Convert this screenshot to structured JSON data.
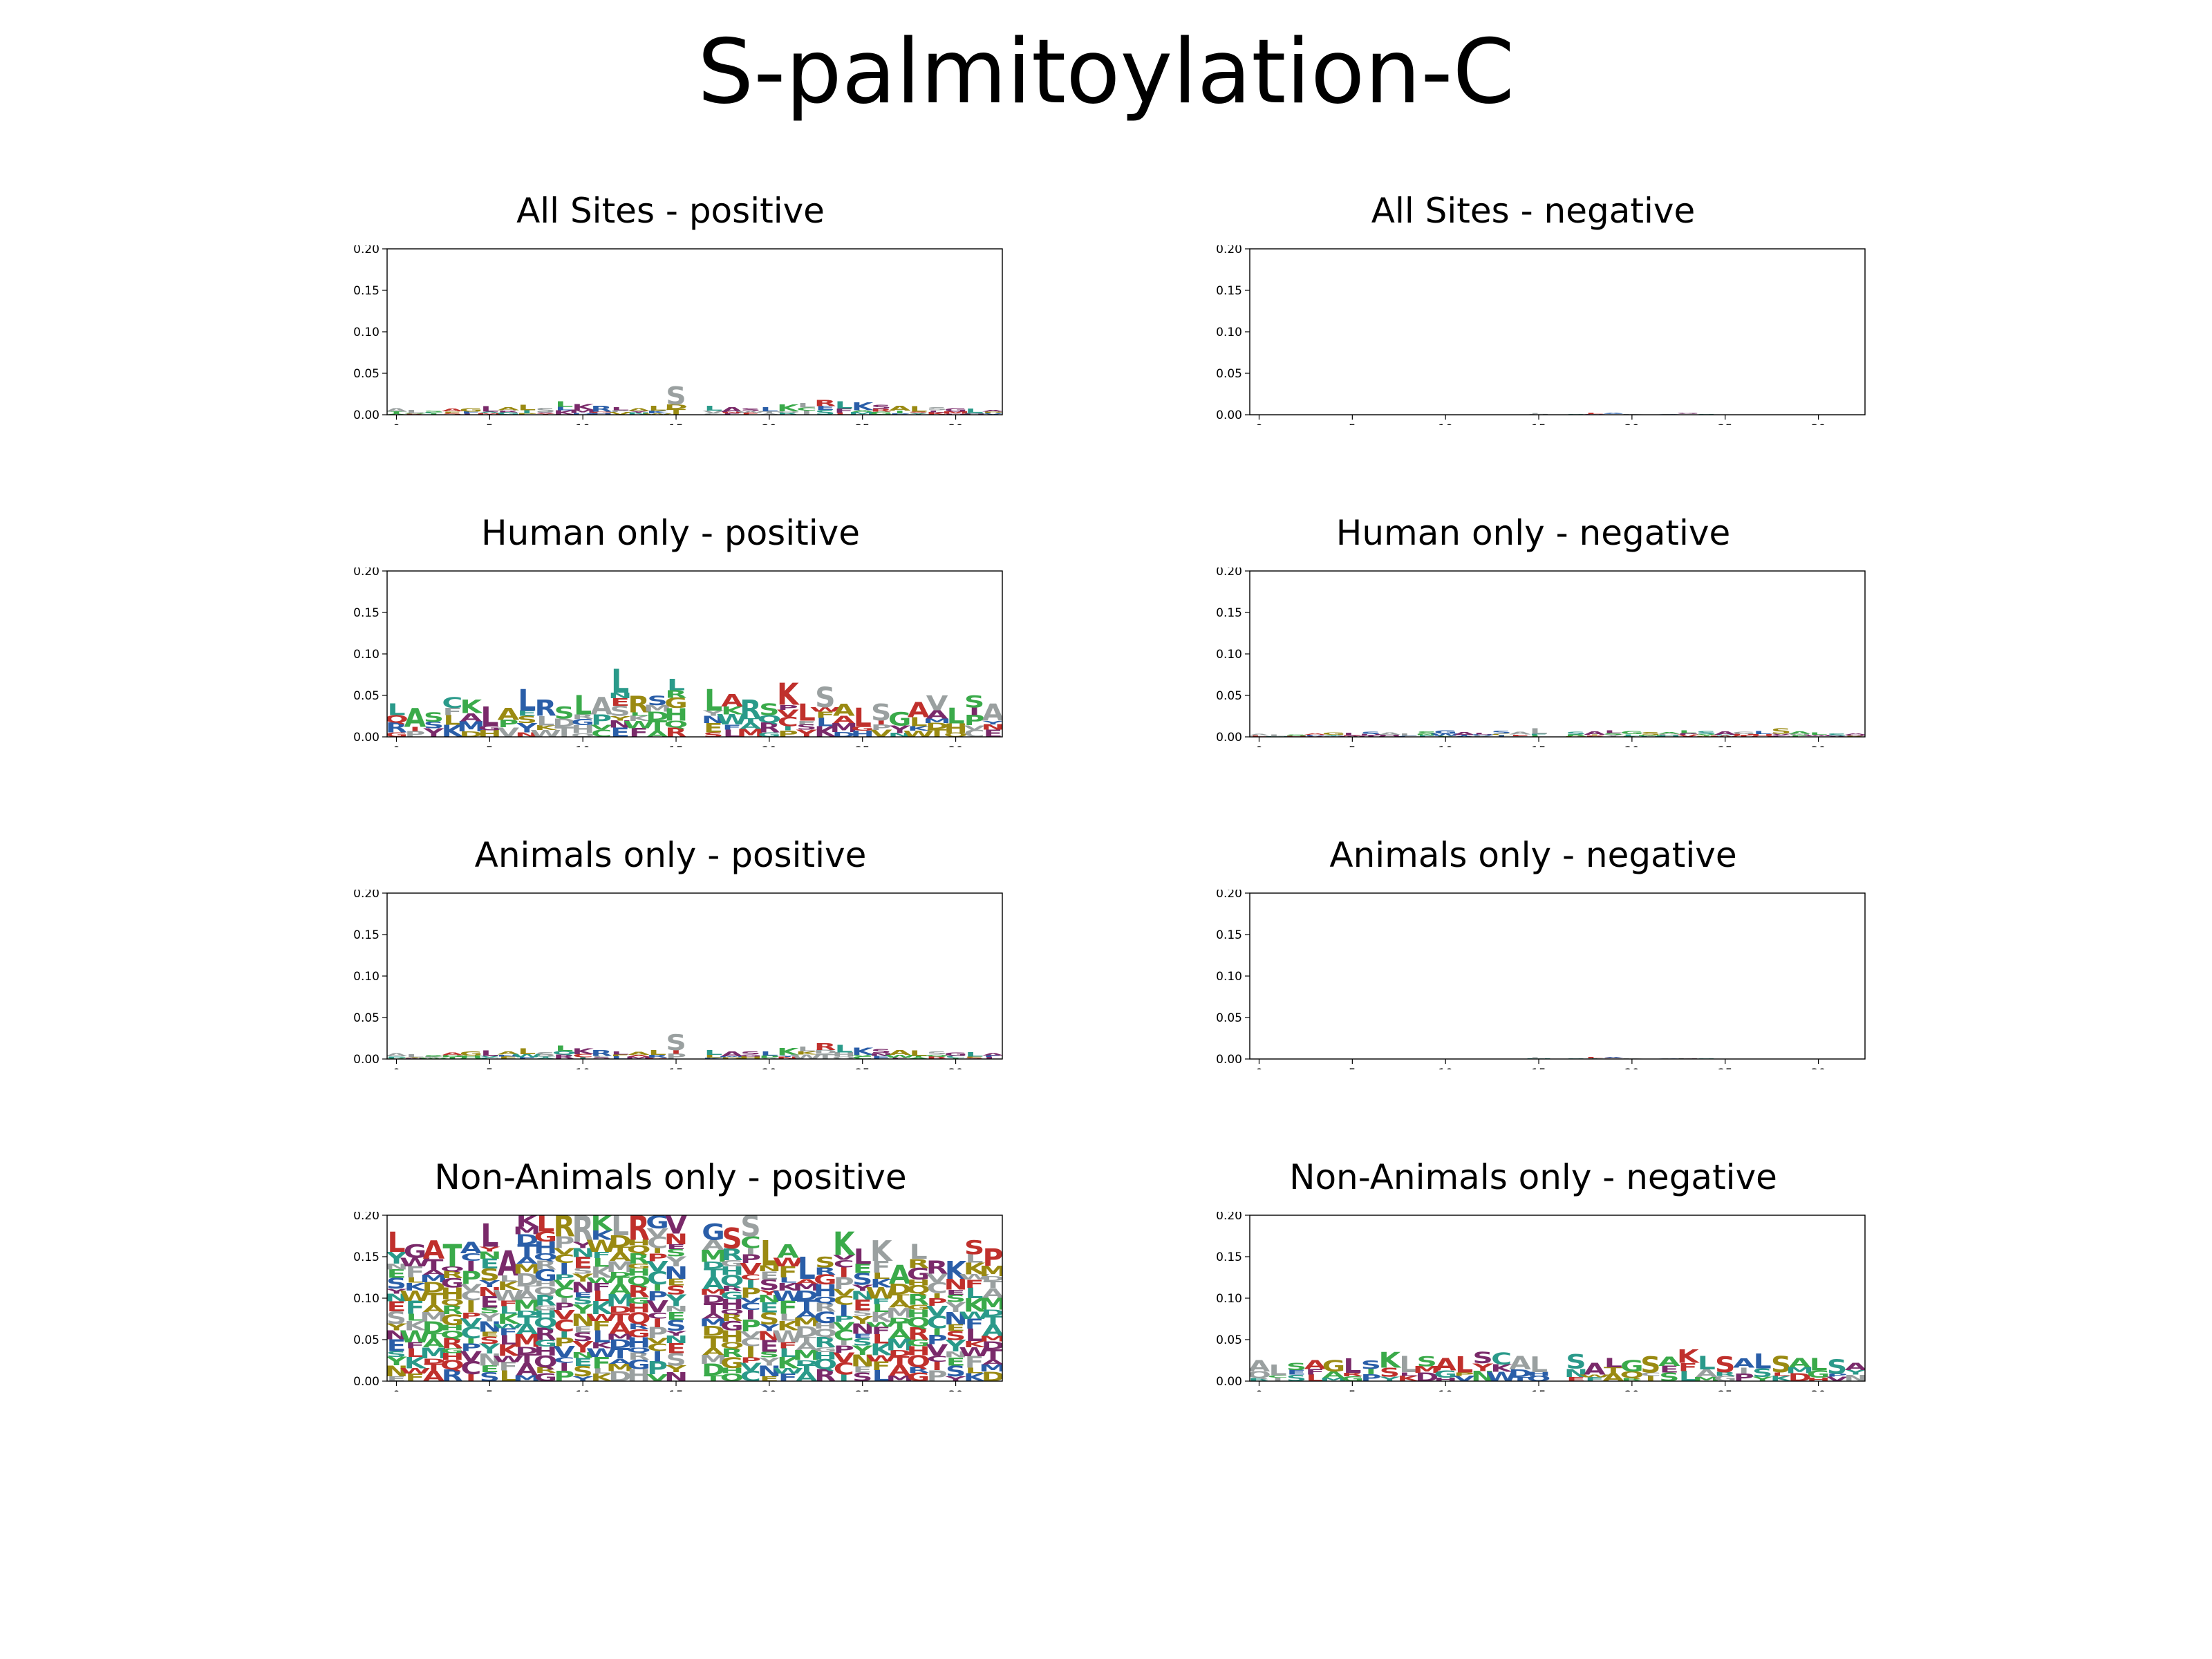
{
  "suptitle": "S-palmitoylation-C",
  "colors": {
    "blue": "#2a5ea8",
    "red": "#c0302c",
    "green": "#3aaa4a",
    "olive": "#9a8a12",
    "purple": "#7a2a6a",
    "teal": "#2a9a8a",
    "gray": "#9aa0a0"
  },
  "chart_data": [
    {
      "type": "bar",
      "panel": "All Sites - positive",
      "title": "All Sites - positive",
      "ylim": [
        0,
        0.2
      ],
      "yticks": [
        "0.00",
        "0.05",
        "0.10",
        "0.15",
        "0.20"
      ],
      "xticks": [
        "0",
        "5",
        "10",
        "15",
        "20",
        "25",
        "30"
      ],
      "positions": [
        0,
        1,
        2,
        3,
        4,
        5,
        6,
        7,
        8,
        9,
        10,
        11,
        12,
        13,
        14,
        15,
        16,
        17,
        18,
        19,
        20,
        21,
        22,
        23,
        24,
        25,
        26,
        27,
        28,
        29,
        30,
        31,
        32
      ],
      "values": [
        0.008,
        0.006,
        0.005,
        0.007,
        0.008,
        0.01,
        0.009,
        0.012,
        0.008,
        0.016,
        0.013,
        0.011,
        0.009,
        0.008,
        0.011,
        0.034,
        0,
        0.011,
        0.009,
        0.008,
        0.009,
        0.012,
        0.014,
        0.018,
        0.016,
        0.015,
        0.012,
        0.011,
        0.01,
        0.009,
        0.008,
        0.007,
        0.006
      ],
      "top_letters": [
        "A",
        "L",
        "S",
        "A",
        "G",
        "L",
        "A",
        "L",
        "S",
        "L",
        "K",
        "R",
        "L",
        "A",
        "L",
        "S",
        "",
        "L",
        "A",
        "S",
        "L",
        "K",
        "L",
        "R",
        "L",
        "K",
        "S",
        "A",
        "L",
        "S",
        "G",
        "L",
        "A"
      ],
      "grid": false
    },
    {
      "type": "bar",
      "panel": "All Sites - negative",
      "title": "All Sites - negative",
      "ylim": [
        0,
        0.2
      ],
      "yticks": [
        "0.00",
        "0.05",
        "0.10",
        "0.15",
        "0.20"
      ],
      "xticks": [
        "0",
        "5",
        "10",
        "15",
        "20",
        "25",
        "30"
      ],
      "positions": [
        0,
        1,
        2,
        3,
        4,
        5,
        6,
        7,
        8,
        9,
        10,
        11,
        12,
        13,
        14,
        15,
        16,
        17,
        18,
        19,
        20,
        21,
        22,
        23,
        24,
        25,
        26,
        27,
        28,
        29,
        30,
        31,
        32
      ],
      "values": [
        0,
        0,
        0,
        0,
        0,
        0,
        0,
        0,
        0,
        0,
        0,
        0,
        0,
        0,
        0,
        0.002,
        0,
        0.001,
        0.002,
        0.002,
        0.001,
        0,
        0.001,
        0.002,
        0.001,
        0,
        0,
        0,
        0,
        0,
        0,
        0,
        0
      ],
      "top_letters": [
        "",
        "",
        "",
        "",
        "",
        "",
        "",
        "",
        "",
        "",
        "",
        "",
        "",
        "",
        "",
        "L",
        "",
        "S",
        "L",
        "A",
        "K",
        "",
        "L",
        "G",
        "S",
        "",
        "",
        "",
        "",
        "",
        "",
        "",
        ""
      ],
      "grid": false
    },
    {
      "type": "bar",
      "panel": "Human only - positive",
      "title": "Human only - positive",
      "ylim": [
        0,
        0.2
      ],
      "yticks": [
        "0.00",
        "0.05",
        "0.10",
        "0.15",
        "0.20"
      ],
      "xticks": [
        "0",
        "5",
        "10",
        "15",
        "20",
        "25",
        "30"
      ],
      "positions": [
        0,
        1,
        2,
        3,
        4,
        5,
        6,
        7,
        8,
        9,
        10,
        11,
        12,
        13,
        14,
        15,
        16,
        17,
        18,
        19,
        20,
        21,
        22,
        23,
        24,
        25,
        26,
        27,
        28,
        29,
        30,
        31,
        32
      ],
      "values": [
        0.04,
        0.035,
        0.03,
        0.048,
        0.045,
        0.037,
        0.035,
        0.058,
        0.045,
        0.037,
        0.05,
        0.048,
        0.082,
        0.05,
        0.05,
        0.07,
        0,
        0.058,
        0.052,
        0.045,
        0.04,
        0.065,
        0.04,
        0.06,
        0.04,
        0.035,
        0.04,
        0.03,
        0.042,
        0.05,
        0.035,
        0.05,
        0.04
      ],
      "top_letters": [
        "L",
        "A",
        "S",
        "C",
        "K",
        "L",
        "A",
        "L",
        "R",
        "S",
        "L",
        "A",
        "L",
        "R",
        "S",
        "L",
        "",
        "L",
        "A",
        "R",
        "S",
        "K",
        "L",
        "S",
        "A",
        "L",
        "S",
        "G",
        "A",
        "V",
        "L",
        "S",
        "A"
      ],
      "grid": false
    },
    {
      "type": "bar",
      "panel": "Human only - negative",
      "title": "Human only - negative",
      "ylim": [
        0,
        0.2
      ],
      "yticks": [
        "0.00",
        "0.05",
        "0.10",
        "0.15",
        "0.20"
      ],
      "xticks": [
        "0",
        "5",
        "10",
        "15",
        "20",
        "25",
        "30"
      ],
      "positions": [
        0,
        1,
        2,
        3,
        4,
        5,
        6,
        7,
        8,
        9,
        10,
        11,
        12,
        13,
        14,
        15,
        16,
        17,
        18,
        19,
        20,
        21,
        22,
        23,
        24,
        25,
        26,
        27,
        28,
        29,
        30,
        31,
        32
      ],
      "values": [
        0.004,
        0.003,
        0.003,
        0.004,
        0.005,
        0.005,
        0.006,
        0.005,
        0.004,
        0.006,
        0.008,
        0.006,
        0.005,
        0.007,
        0.006,
        0.01,
        0,
        0.006,
        0.007,
        0.008,
        0.007,
        0.006,
        0.006,
        0.008,
        0.007,
        0.007,
        0.006,
        0.007,
        0.01,
        0.006,
        0.005,
        0.004,
        0.004
      ],
      "top_letters": [
        "A",
        "L",
        "S",
        "A",
        "G",
        "L",
        "S",
        "A",
        "L",
        "S",
        "G",
        "A",
        "L",
        "S",
        "A",
        "L",
        "",
        "S",
        "A",
        "L",
        "G",
        "S",
        "A",
        "L",
        "S",
        "A",
        "G",
        "L",
        "S",
        "A",
        "L",
        "S",
        "A"
      ],
      "grid": false
    },
    {
      "type": "bar",
      "panel": "Animals only - positive",
      "title": "Animals only - positive",
      "ylim": [
        0,
        0.2
      ],
      "yticks": [
        "0.00",
        "0.05",
        "0.10",
        "0.15",
        "0.20"
      ],
      "xticks": [
        "0",
        "5",
        "10",
        "15",
        "20",
        "25",
        "30"
      ],
      "positions": [
        0,
        1,
        2,
        3,
        4,
        5,
        6,
        7,
        8,
        9,
        10,
        11,
        12,
        13,
        14,
        15,
        16,
        17,
        18,
        19,
        20,
        21,
        22,
        23,
        24,
        25,
        26,
        27,
        28,
        29,
        30,
        31,
        32
      ],
      "values": [
        0.007,
        0.006,
        0.005,
        0.008,
        0.009,
        0.01,
        0.009,
        0.013,
        0.008,
        0.016,
        0.013,
        0.011,
        0.009,
        0.009,
        0.011,
        0.03,
        0,
        0.011,
        0.009,
        0.009,
        0.009,
        0.013,
        0.015,
        0.019,
        0.017,
        0.014,
        0.012,
        0.011,
        0.01,
        0.009,
        0.008,
        0.008,
        0.007
      ],
      "top_letters": [
        "A",
        "L",
        "S",
        "A",
        "G",
        "L",
        "A",
        "L",
        "S",
        "L",
        "K",
        "R",
        "L",
        "A",
        "L",
        "S",
        "",
        "L",
        "A",
        "S",
        "L",
        "K",
        "L",
        "R",
        "L",
        "K",
        "S",
        "A",
        "L",
        "S",
        "G",
        "L",
        "A"
      ],
      "grid": false
    },
    {
      "type": "bar",
      "panel": "Animals only - negative",
      "title": "Animals only - negative",
      "ylim": [
        0,
        0.2
      ],
      "yticks": [
        "0.00",
        "0.05",
        "0.10",
        "0.15",
        "0.20"
      ],
      "xticks": [
        "0",
        "5",
        "10",
        "15",
        "20",
        "25",
        "30"
      ],
      "positions": [
        0,
        1,
        2,
        3,
        4,
        5,
        6,
        7,
        8,
        9,
        10,
        11,
        12,
        13,
        14,
        15,
        16,
        17,
        18,
        19,
        20,
        21,
        22,
        23,
        24,
        25,
        26,
        27,
        28,
        29,
        30,
        31,
        32
      ],
      "values": [
        0,
        0,
        0,
        0,
        0,
        0,
        0,
        0,
        0,
        0,
        0,
        0,
        0,
        0,
        0,
        0.002,
        0,
        0.001,
        0.002,
        0.002,
        0.001,
        0,
        0.001,
        0.001,
        0.001,
        0,
        0,
        0,
        0,
        0,
        0,
        0,
        0
      ],
      "top_letters": [
        "",
        "",
        "",
        "",
        "",
        "",
        "",
        "",
        "",
        "",
        "",
        "",
        "",
        "",
        "",
        "L",
        "",
        "S",
        "L",
        "A",
        "K",
        "",
        "L",
        "G",
        "S",
        "",
        "",
        "",
        "",
        "",
        "",
        "",
        ""
      ],
      "grid": false
    },
    {
      "type": "bar",
      "panel": "Non-Animals only - positive",
      "title": "Non-Animals only - positive",
      "ylim": [
        0,
        0.2
      ],
      "yticks": [
        "0.00",
        "0.05",
        "0.10",
        "0.15",
        "0.20"
      ],
      "xticks": [
        "0",
        "5",
        "10",
        "15",
        "20",
        "25",
        "30"
      ],
      "positions": [
        0,
        1,
        2,
        3,
        4,
        5,
        6,
        7,
        8,
        9,
        10,
        11,
        12,
        13,
        14,
        15,
        16,
        17,
        18,
        19,
        20,
        21,
        22,
        23,
        24,
        25,
        26,
        27,
        28,
        29,
        30,
        31,
        32
      ],
      "values": [
        0.18,
        0.165,
        0.17,
        0.165,
        0.168,
        0.19,
        0.158,
        0.2,
        0.2,
        0.2,
        0.2,
        0.2,
        0.2,
        0.2,
        0.2,
        0.2,
        0,
        0.19,
        0.185,
        0.2,
        0.17,
        0.165,
        0.15,
        0.15,
        0.18,
        0.16,
        0.17,
        0.14,
        0.165,
        0.145,
        0.145,
        0.17,
        0.16
      ],
      "top_letters": [
        "L",
        "G",
        "A",
        "T",
        "A",
        "L",
        "A",
        "K",
        "L",
        "R",
        "R",
        "K",
        "L",
        "R",
        "G",
        "V",
        "",
        "G",
        "S",
        "S",
        "L",
        "A",
        "L",
        "S",
        "K",
        "L",
        "K",
        "A",
        "L",
        "R",
        "K",
        "S",
        "P"
      ],
      "grid": false
    },
    {
      "type": "bar",
      "panel": "Non-Animals only - negative",
      "title": "Non-Animals only - negative",
      "ylim": [
        0,
        0.2
      ],
      "yticks": [
        "0.00",
        "0.05",
        "0.10",
        "0.15",
        "0.20"
      ],
      "xticks": [
        "0",
        "5",
        "10",
        "15",
        "20",
        "25",
        "30"
      ],
      "positions": [
        0,
        1,
        2,
        3,
        4,
        5,
        6,
        7,
        8,
        9,
        10,
        11,
        12,
        13,
        14,
        15,
        16,
        17,
        18,
        19,
        20,
        21,
        22,
        23,
        24,
        25,
        26,
        27,
        28,
        29,
        30,
        31,
        32
      ],
      "values": [
        0.025,
        0.02,
        0.022,
        0.025,
        0.025,
        0.027,
        0.025,
        0.035,
        0.03,
        0.03,
        0.028,
        0.03,
        0.035,
        0.035,
        0.03,
        0.03,
        0,
        0.032,
        0.022,
        0.028,
        0.025,
        0.03,
        0.03,
        0.038,
        0.03,
        0.03,
        0.028,
        0.033,
        0.03,
        0.028,
        0.028,
        0.026,
        0.022
      ],
      "top_letters": [
        "A",
        "L",
        "S",
        "A",
        "G",
        "L",
        "S",
        "K",
        "L",
        "S",
        "A",
        "L",
        "S",
        "C",
        "A",
        "L",
        "",
        "S",
        "A",
        "L",
        "G",
        "S",
        "A",
        "K",
        "L",
        "S",
        "A",
        "L",
        "S",
        "A",
        "L",
        "S",
        "A"
      ],
      "grid": false
    }
  ]
}
